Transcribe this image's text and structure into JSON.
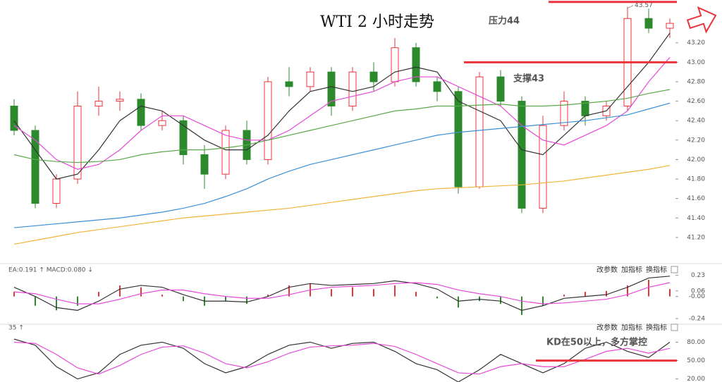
{
  "chart_data": [
    {
      "type": "candlestick",
      "title": "WTI 2 小时走势",
      "open": [
        42.55,
        42.3,
        41.55,
        41.8,
        42.55,
        42.6,
        42.62,
        42.35,
        42.4,
        42.05,
        41.85,
        42.3,
        42.0,
        42.8,
        42.75,
        42.9,
        42.55,
        42.9,
        42.8,
        43.15,
        42.8,
        42.7,
        41.72,
        42.85,
        42.6,
        41.5,
        42.35,
        42.6,
        42.45,
        42.55,
        43.45,
        43.35
      ],
      "high": [
        42.62,
        42.35,
        41.85,
        42.7,
        42.75,
        42.7,
        42.68,
        42.5,
        42.45,
        42.15,
        42.35,
        42.4,
        42.85,
        42.95,
        42.95,
        42.95,
        42.95,
        43.0,
        43.25,
        43.2,
        42.85,
        42.75,
        42.9,
        42.92,
        42.65,
        42.45,
        42.7,
        42.65,
        42.6,
        43.57,
        43.55,
        43.45
      ],
      "low": [
        42.25,
        41.5,
        41.5,
        41.75,
        42.45,
        42.5,
        42.3,
        42.3,
        41.95,
        41.7,
        41.8,
        41.95,
        41.95,
        42.65,
        42.7,
        42.45,
        42.5,
        42.7,
        42.75,
        42.75,
        42.6,
        41.65,
        41.7,
        42.55,
        41.45,
        41.45,
        42.3,
        42.35,
        42.4,
        42.5,
        43.3,
        43.25
      ],
      "close": [
        42.3,
        41.55,
        41.8,
        42.55,
        42.6,
        42.62,
        42.35,
        42.4,
        42.05,
        41.85,
        42.3,
        42.0,
        42.8,
        42.75,
        42.9,
        42.55,
        42.9,
        42.8,
        43.15,
        42.8,
        42.7,
        41.72,
        42.85,
        42.6,
        41.5,
        42.35,
        42.6,
        42.45,
        42.55,
        43.45,
        43.35,
        43.4
      ],
      "up_color": "#e8343a",
      "down_color": "#2c8a2c",
      "series": [
        {
          "color": "#333333",
          "values": [
            42.4,
            42.1,
            41.8,
            41.85,
            42.1,
            42.4,
            42.55,
            42.5,
            42.35,
            42.2,
            42.1,
            42.1,
            42.25,
            42.5,
            42.7,
            42.75,
            42.7,
            42.75,
            42.9,
            42.95,
            42.9,
            42.6,
            42.5,
            42.4,
            42.1,
            42.05,
            42.25,
            42.45,
            42.5,
            42.75,
            43.0,
            43.3
          ]
        },
        {
          "color": "#e64ad8",
          "values": [
            42.35,
            42.2,
            42.0,
            41.9,
            41.95,
            42.1,
            42.3,
            42.45,
            42.45,
            42.35,
            42.25,
            42.2,
            42.2,
            42.3,
            42.45,
            42.6,
            42.65,
            42.7,
            42.8,
            42.85,
            42.85,
            42.75,
            42.65,
            42.55,
            42.35,
            42.2,
            42.15,
            42.25,
            42.35,
            42.5,
            42.8,
            43.05
          ]
        },
        {
          "color": "#5aa84a",
          "values": [
            42.05,
            42.0,
            41.98,
            41.97,
            41.98,
            42.0,
            42.05,
            42.08,
            42.1,
            42.1,
            42.12,
            42.15,
            42.2,
            42.25,
            42.3,
            42.35,
            42.4,
            42.45,
            42.5,
            42.52,
            42.55,
            42.55,
            42.56,
            42.57,
            42.55,
            42.55,
            42.56,
            42.58,
            42.6,
            42.63,
            42.68,
            42.72
          ]
        },
        {
          "color": "#3a8fd8",
          "values": [
            41.3,
            41.32,
            41.34,
            41.36,
            41.38,
            41.4,
            41.43,
            41.46,
            41.5,
            41.55,
            41.62,
            41.7,
            41.8,
            41.88,
            41.95,
            42.0,
            42.05,
            42.1,
            42.15,
            42.2,
            42.25,
            42.28,
            42.3,
            42.32,
            42.34,
            42.36,
            42.38,
            42.4,
            42.43,
            42.46,
            42.52,
            42.58
          ]
        },
        {
          "color": "#f2b43c",
          "values": [
            41.13,
            41.17,
            41.21,
            41.25,
            41.28,
            41.31,
            41.34,
            41.37,
            41.4,
            41.42,
            41.44,
            41.46,
            41.48,
            41.5,
            41.53,
            41.56,
            41.59,
            41.62,
            41.65,
            41.68,
            41.7,
            41.71,
            41.72,
            41.73,
            41.74,
            41.76,
            41.78,
            41.81,
            41.84,
            41.87,
            41.9,
            41.94
          ]
        }
      ],
      "hlines": [
        {
          "label": "压力44",
          "value": 43.62,
          "color": "#e8343a"
        },
        {
          "label": "支撑43",
          "value": 43.0,
          "color": "#e8343a"
        }
      ],
      "ylim": [
        40.96,
        43.64
      ],
      "yticks": [
        {
          "value": 41.2,
          "label": "41.20"
        },
        {
          "value": 41.4,
          "label": "41.40"
        },
        {
          "value": 41.6,
          "label": "41.60"
        },
        {
          "value": 41.8,
          "label": "41.80"
        },
        {
          "value": 42.0,
          "label": "42.00"
        },
        {
          "value": 42.2,
          "label": "42.20"
        },
        {
          "value": 42.4,
          "label": "42.40"
        },
        {
          "value": 42.6,
          "label": "42.60"
        },
        {
          "value": 42.8,
          "label": "42.80"
        },
        {
          "value": 43.0,
          "label": "43.00"
        },
        {
          "value": 43.2,
          "label": "43.20"
        }
      ]
    },
    {
      "type": "macd",
      "header": "EA:0.191 ↑ MACD:0.080 ↓",
      "buttons": [
        "改参数",
        "加指标",
        "换指标"
      ],
      "histogram": [
        0.05,
        -0.1,
        -0.15,
        -0.1,
        0.05,
        0.12,
        0.1,
        0.02,
        -0.05,
        -0.1,
        -0.05,
        -0.08,
        0.02,
        0.12,
        0.14,
        0.08,
        0.1,
        0.08,
        0.12,
        0.05,
        -0.02,
        -0.12,
        -0.05,
        -0.08,
        -0.2,
        -0.1,
        0.02,
        0.05,
        0.06,
        0.12,
        0.18,
        0.08
      ],
      "up_color": "#e8343a",
      "down_color": "#2c8a2c",
      "series": [
        {
          "color": "#333333",
          "values": [
            0.1,
            0.0,
            -0.12,
            -0.15,
            -0.05,
            0.08,
            0.12,
            0.1,
            0.02,
            -0.05,
            -0.05,
            -0.06,
            0.0,
            0.1,
            0.14,
            0.12,
            0.13,
            0.14,
            0.17,
            0.14,
            0.08,
            -0.05,
            -0.03,
            -0.05,
            -0.15,
            -0.1,
            -0.02,
            0.0,
            0.02,
            0.1,
            0.2,
            0.22
          ]
        },
        {
          "color": "#e64ad8",
          "values": [
            0.05,
            0.03,
            -0.03,
            -0.08,
            -0.08,
            -0.03,
            0.03,
            0.07,
            0.07,
            0.03,
            0.0,
            -0.02,
            -0.02,
            0.02,
            0.07,
            0.1,
            0.11,
            0.12,
            0.14,
            0.15,
            0.13,
            0.07,
            0.03,
            0.0,
            -0.05,
            -0.08,
            -0.07,
            -0.05,
            -0.03,
            0.02,
            0.1,
            0.15
          ]
        }
      ],
      "ylim": [
        -0.3,
        0.31
      ],
      "yticks": [
        0.23,
        0.06,
        {
          "value": 0,
          "label": "-0.00"
        },
        -0.24
      ]
    },
    {
      "type": "kd",
      "header": "35 ↑",
      "buttons": [
        "改参数",
        "加指标",
        "换指标"
      ],
      "series": [
        {
          "color": "#333333",
          "values": [
            85,
            75,
            40,
            20,
            30,
            60,
            75,
            80,
            70,
            45,
            30,
            40,
            60,
            75,
            80,
            70,
            78,
            80,
            65,
            45,
            35,
            15,
            35,
            60,
            45,
            30,
            45,
            70,
            80,
            65,
            55,
            80
          ]
        },
        {
          "color": "#e64ad8",
          "values": [
            80,
            78,
            60,
            38,
            28,
            42,
            60,
            72,
            74,
            62,
            45,
            38,
            48,
            62,
            72,
            74,
            75,
            78,
            73,
            60,
            45,
            30,
            28,
            40,
            45,
            40,
            40,
            52,
            65,
            70,
            62,
            70
          ]
        }
      ],
      "hlines": [
        {
          "label": "KD在50以上，多方掌控",
          "value": 50,
          "color": "#e8343a"
        }
      ],
      "ylim": [
        15,
        107
      ],
      "yticks": [
        {
          "value": 80,
          "label": "80.00"
        },
        {
          "value": 50,
          "label": "50.00"
        },
        {
          "value": 20,
          "label": "20.00"
        }
      ]
    }
  ]
}
